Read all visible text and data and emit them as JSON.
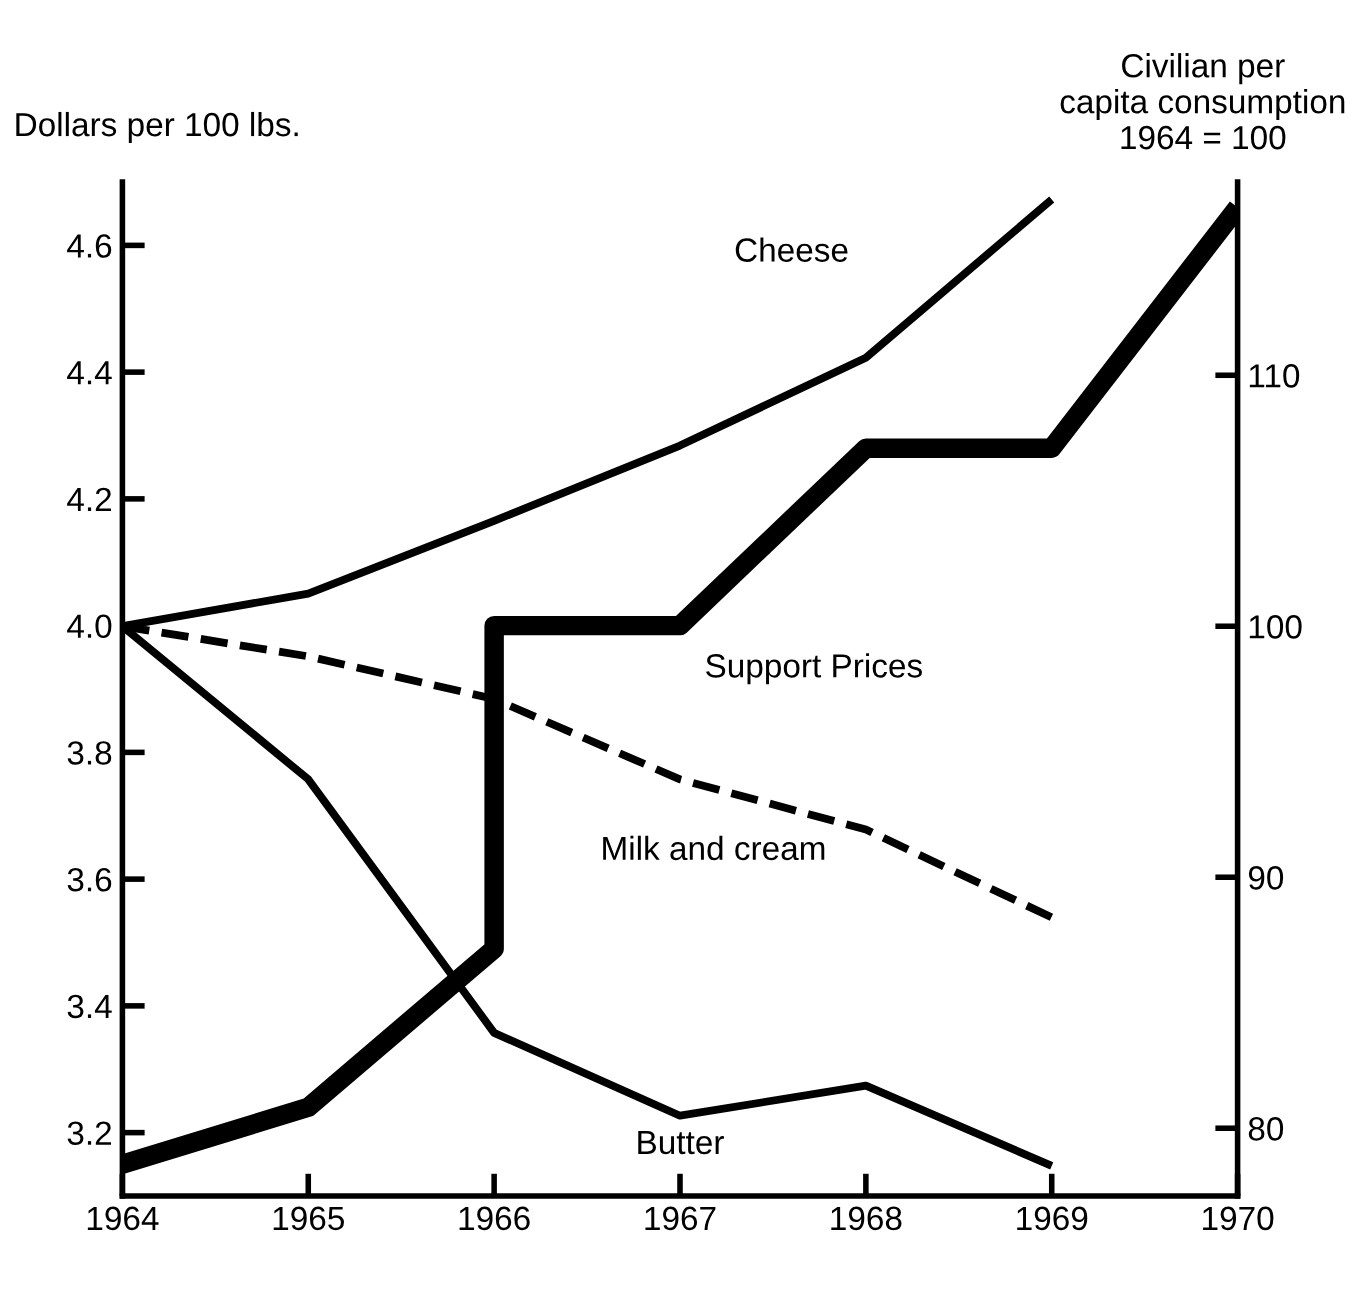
{
  "chart_data": {
    "type": "line",
    "ylabel": "Dollars per 100 lbs.",
    "y2label": "Civilian per\ncapita consumption\n1964 = 100",
    "xlim": [
      1964,
      1970
    ],
    "xticks": [
      1964,
      1965,
      1966,
      1967,
      1968,
      1969,
      1970
    ],
    "ylim": [
      3.1,
      4.7
    ],
    "yticks": [
      3.2,
      3.4,
      3.6,
      3.8,
      {
        "value": 4.0,
        "label": "4.0"
      },
      4.2,
      4.4,
      4.6
    ],
    "y2lim": [
      77.3,
      117.7
    ],
    "y2ticks": [
      80,
      90,
      100,
      110
    ],
    "grid": false,
    "legend": false,
    "marker": "none",
    "series": [
      {
        "name": "Support Prices",
        "color": "#000000",
        "axis": "y",
        "line_style": "solid",
        "x": [
          1964,
          1965,
          1966,
          1966,
          1967,
          1968,
          1969,
          1970
        ],
        "values": [
          3.15,
          3.24,
          3.49,
          4.0,
          4.0,
          4.28,
          4.28,
          4.66
        ]
      },
      {
        "name": "Cheese",
        "color": "#000000",
        "axis": "y2",
        "line_style": "solid",
        "x": [
          1964,
          1965,
          1966,
          1967,
          1968,
          1969
        ],
        "values": [
          100,
          101.3,
          104.2,
          107.2,
          110.7,
          117
        ]
      },
      {
        "name": "Milk and cream",
        "color": "#000000",
        "axis": "y2",
        "line_style": "dashed",
        "x": [
          1964,
          1965,
          1966,
          1967,
          1968,
          1969
        ],
        "values": [
          100,
          98.8,
          97.1,
          93.9,
          91.9,
          88.4
        ]
      },
      {
        "name": "Butter",
        "color": "#000000",
        "axis": "y2",
        "line_style": "solid",
        "x": [
          1964,
          1965,
          1966,
          1967,
          1968,
          1969
        ],
        "values": [
          100,
          93.9,
          83.8,
          80.5,
          81.7,
          78.5
        ]
      }
    ]
  }
}
